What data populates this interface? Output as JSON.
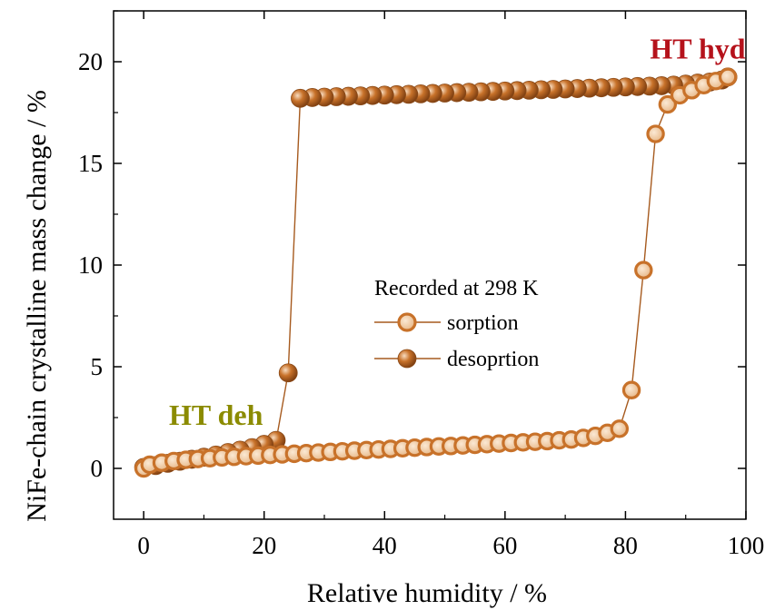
{
  "chart_data": {
    "type": "scatter",
    "xlabel": "Relative humidity / %",
    "ylabel": "NiFe-chain crystalline mass change / %",
    "xlim": [
      -5,
      100
    ],
    "ylim": [
      -2.5,
      22.5
    ],
    "xticks": [
      "0",
      "20",
      "40",
      "60",
      "80",
      "100"
    ],
    "yticks": [
      "0",
      "5",
      "10",
      "15",
      "20"
    ],
    "legend": {
      "title": "Recorded at 298 K",
      "placement": "center-right"
    },
    "annotations": [
      {
        "text": "HT hyd",
        "color": "#b5121b",
        "x": 92,
        "y": 20.6
      },
      {
        "text": "HT deh",
        "color": "#8b8b00",
        "x": 12,
        "y": 2.6
      }
    ],
    "series": [
      {
        "name": "sorption",
        "color": "#c8722a",
        "marker": "hollow-sphere",
        "x": [
          0,
          1,
          3,
          5,
          7,
          9,
          11,
          13,
          15,
          17,
          19,
          21,
          23,
          25,
          27,
          29,
          31,
          33,
          35,
          37,
          39,
          41,
          43,
          45,
          47,
          49,
          51,
          53,
          55,
          57,
          59,
          61,
          63,
          65,
          67,
          69,
          71,
          73,
          75,
          77,
          79,
          81,
          83,
          85,
          87,
          89,
          91,
          93,
          95,
          97
        ],
        "y": [
          0,
          0.18,
          0.28,
          0.36,
          0.42,
          0.46,
          0.5,
          0.54,
          0.57,
          0.6,
          0.63,
          0.66,
          0.69,
          0.72,
          0.75,
          0.78,
          0.81,
          0.84,
          0.87,
          0.9,
          0.93,
          0.96,
          0.99,
          1.02,
          1.05,
          1.08,
          1.1,
          1.13,
          1.16,
          1.19,
          1.22,
          1.25,
          1.28,
          1.31,
          1.34,
          1.38,
          1.42,
          1.5,
          1.6,
          1.75,
          1.95,
          3.85,
          9.75,
          16.45,
          17.9,
          18.35,
          18.6,
          18.85,
          19.05,
          19.25
        ]
      },
      {
        "name": "desoprtion",
        "color": "#c8722a",
        "marker": "filled-sphere",
        "x": [
          97,
          96,
          94,
          92,
          90,
          88,
          86,
          84,
          82,
          80,
          78,
          76,
          74,
          72,
          70,
          68,
          66,
          64,
          62,
          60,
          58,
          56,
          54,
          52,
          50,
          48,
          46,
          44,
          42,
          40,
          38,
          36,
          34,
          32,
          30,
          28,
          26,
          24,
          22,
          20,
          18,
          16,
          14,
          12,
          10,
          8,
          6,
          4,
          2,
          0
        ],
        "y": [
          19.25,
          19.1,
          19.0,
          18.95,
          18.9,
          18.85,
          18.82,
          18.8,
          18.78,
          18.76,
          18.74,
          18.72,
          18.7,
          18.68,
          18.66,
          18.64,
          18.62,
          18.6,
          18.58,
          18.56,
          18.54,
          18.52,
          18.5,
          18.48,
          18.46,
          18.44,
          18.42,
          18.4,
          18.38,
          18.36,
          18.34,
          18.32,
          18.3,
          18.28,
          18.26,
          18.24,
          18.2,
          4.7,
          1.38,
          1.18,
          1.02,
          0.9,
          0.78,
          0.66,
          0.55,
          0.45,
          0.35,
          0.25,
          0.14,
          0.05
        ]
      }
    ]
  }
}
